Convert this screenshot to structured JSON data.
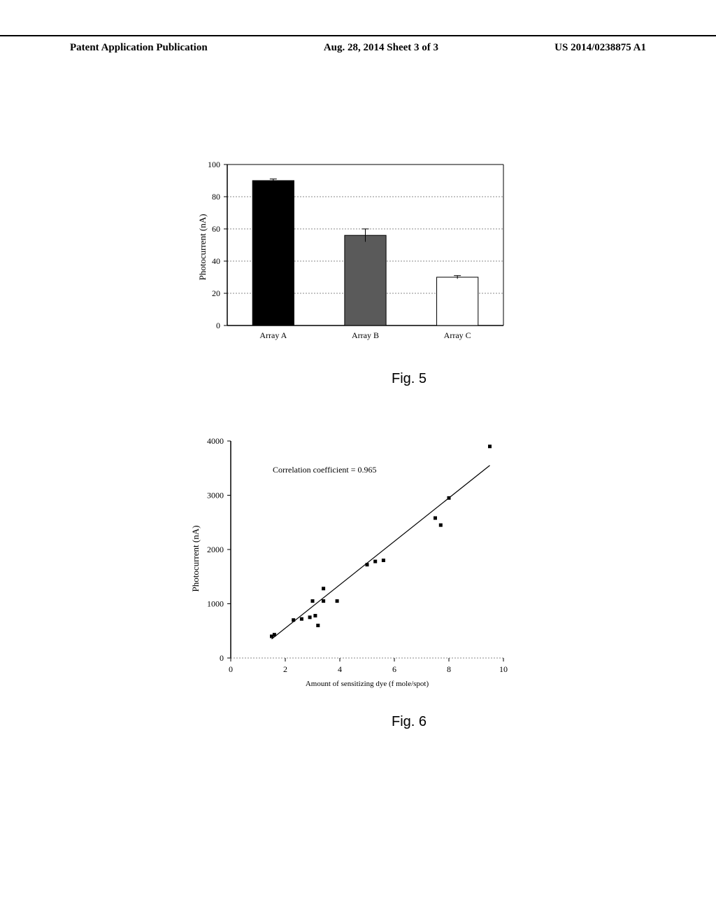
{
  "header": {
    "left": "Patent Application Publication",
    "center": "Aug. 28, 2014  Sheet 3 of 3",
    "right": "US 2014/0238875 A1"
  },
  "fig5": {
    "type": "bar",
    "caption": "Fig. 5",
    "ylabel": "Photocurrent (nA)",
    "ylim": [
      0,
      100
    ],
    "ytick_step": 20,
    "yticks": [
      0,
      20,
      40,
      60,
      80,
      100
    ],
    "categories": [
      "Array A",
      "Array B",
      "Array C"
    ],
    "values": [
      90,
      56,
      30
    ],
    "errors": [
      1,
      4,
      1
    ],
    "bar_colors": [
      "#000000",
      "#5a5a5a",
      "#ffffff"
    ],
    "bar_stroke": "#000000",
    "grid_color": "#888888",
    "axis_color": "#000000",
    "label_fontsize": 12,
    "ylabel_fontsize": 13,
    "bar_width": 0.45
  },
  "fig6": {
    "type": "scatter",
    "caption": "Fig. 6",
    "ylabel": "Photocurrent (nA)",
    "xlabel": "Amount of sensitizing dye (f mole/spot)",
    "annotation": "Correlation coefficient  =  0.965",
    "xlim": [
      0,
      10
    ],
    "ylim": [
      0,
      4000
    ],
    "xticks": [
      0,
      2,
      4,
      6,
      8,
      10
    ],
    "yticks": [
      0,
      1000,
      2000,
      3000,
      4000
    ],
    "points": [
      [
        1.5,
        400
      ],
      [
        1.6,
        430
      ],
      [
        2.3,
        700
      ],
      [
        2.6,
        720
      ],
      [
        2.9,
        750
      ],
      [
        3.1,
        780
      ],
      [
        3.2,
        600
      ],
      [
        3.0,
        1050
      ],
      [
        3.4,
        1050
      ],
      [
        3.9,
        1050
      ],
      [
        3.4,
        1280
      ],
      [
        5.0,
        1720
      ],
      [
        5.3,
        1780
      ],
      [
        5.6,
        1800
      ],
      [
        7.5,
        2580
      ],
      [
        7.7,
        2450
      ],
      [
        8.0,
        2950
      ],
      [
        9.5,
        3900
      ]
    ],
    "fit_line": {
      "x1": 1.5,
      "y1": 350,
      "x2": 9.5,
      "y2": 3550
    },
    "marker_color": "#000000",
    "marker_size": 5,
    "axis_color": "#000000",
    "grid_color": "#888888",
    "label_fontsize": 12,
    "ylabel_fontsize": 13,
    "annotation_fontsize": 12
  }
}
